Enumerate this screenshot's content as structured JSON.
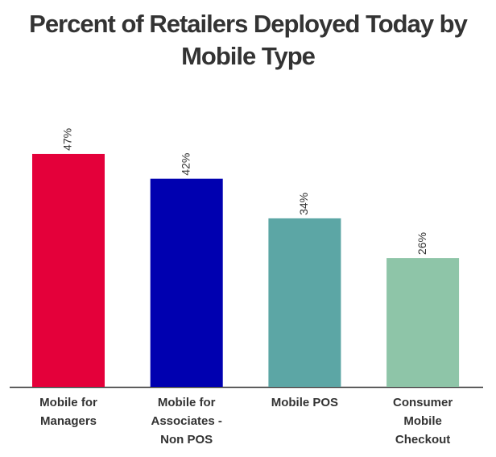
{
  "chart_data": {
    "type": "bar",
    "title": "Percent of Retailers Deployed Today by Mobile Type",
    "categories": [
      "Mobile for Managers",
      "Mobile for Associates - Non POS",
      "Mobile POS",
      "Consumer Mobile Checkout"
    ],
    "values": [
      47,
      42,
      34,
      26
    ],
    "value_labels": [
      "47%",
      "42%",
      "34%",
      "26%"
    ],
    "colors": [
      "#e4003a",
      "#0000b0",
      "#5ca6a5",
      "#8ec5a8"
    ]
  }
}
